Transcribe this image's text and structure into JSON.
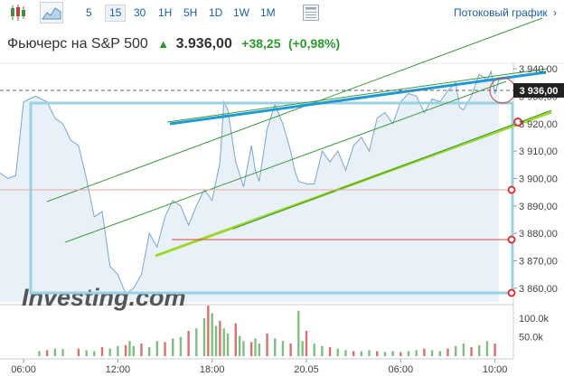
{
  "toolbar": {
    "timeframes": [
      "5",
      "15",
      "30",
      "1H",
      "5H",
      "1D",
      "1W",
      "1M"
    ],
    "active_timeframe": "15",
    "streaming_label": "Потоковый график"
  },
  "instrument": {
    "name": "Фьючерс на S&P 500",
    "price": "3.936,00",
    "change": "+38,25",
    "change_pct": "(+0,98%)"
  },
  "chart_data": {
    "type": "area",
    "price_axis": {
      "min": 3855,
      "max": 3942,
      "ticks": [
        {
          "value": 3940,
          "label": "3 940,00"
        },
        {
          "value": 3930,
          "label": "3 930,00"
        },
        {
          "value": 3920,
          "label": "3 920,00"
        },
        {
          "value": 3910,
          "label": "3 910,00"
        },
        {
          "value": 3900,
          "label": "3 900,00"
        },
        {
          "value": 3890,
          "label": "3 890,00"
        },
        {
          "value": 3880,
          "label": "3 880,00"
        },
        {
          "value": 3870,
          "label": "3 870,00"
        },
        {
          "value": 3860,
          "label": "3 860,00"
        }
      ],
      "current_value": 3936,
      "current_label": "3 936,00"
    },
    "x_axis": {
      "min": 0,
      "max": 130,
      "ticks": [
        {
          "value": 6,
          "label": "06:00"
        },
        {
          "value": 30,
          "label": "12:00"
        },
        {
          "value": 54,
          "label": "18:00"
        },
        {
          "value": 78,
          "label": "20.05"
        },
        {
          "value": 102,
          "label": "06:00"
        },
        {
          "value": 126,
          "label": "10:00"
        }
      ]
    },
    "price_series": [
      [
        0,
        3902
      ],
      [
        2,
        3900
      ],
      [
        4,
        3901
      ],
      [
        6,
        3928
      ],
      [
        9,
        3930
      ],
      [
        12,
        3928
      ],
      [
        14,
        3922
      ],
      [
        16,
        3920
      ],
      [
        18,
        3914
      ],
      [
        20,
        3912
      ],
      [
        22,
        3900
      ],
      [
        24,
        3886
      ],
      [
        26,
        3888
      ],
      [
        28,
        3868
      ],
      [
        30,
        3865
      ],
      [
        32,
        3858
      ],
      [
        34,
        3860
      ],
      [
        36,
        3865
      ],
      [
        38,
        3880
      ],
      [
        40,
        3875
      ],
      [
        42,
        3886
      ],
      [
        44,
        3892
      ],
      [
        46,
        3890
      ],
      [
        48,
        3883
      ],
      [
        50,
        3890
      ],
      [
        52,
        3896
      ],
      [
        54,
        3892
      ],
      [
        56,
        3906
      ],
      [
        57,
        3928
      ],
      [
        58,
        3925
      ],
      [
        60,
        3906
      ],
      [
        62,
        3897
      ],
      [
        64,
        3912
      ],
      [
        65,
        3903
      ],
      [
        66,
        3899
      ],
      [
        68,
        3918
      ],
      [
        70,
        3927
      ],
      [
        72,
        3920
      ],
      [
        74,
        3910
      ],
      [
        75,
        3903
      ],
      [
        76,
        3899
      ],
      [
        78,
        3898
      ],
      [
        80,
        3898
      ],
      [
        82,
        3910
      ],
      [
        84,
        3906
      ],
      [
        86,
        3910
      ],
      [
        88,
        3903
      ],
      [
        90,
        3912
      ],
      [
        92,
        3915
      ],
      [
        94,
        3910
      ],
      [
        96,
        3922
      ],
      [
        98,
        3924
      ],
      [
        100,
        3920
      ],
      [
        102,
        3928
      ],
      [
        104,
        3931
      ],
      [
        106,
        3930
      ],
      [
        108,
        3924
      ],
      [
        110,
        3929
      ],
      [
        112,
        3928
      ],
      [
        114,
        3932
      ],
      [
        116,
        3935
      ],
      [
        117,
        3926
      ],
      [
        118,
        3925
      ],
      [
        120,
        3930
      ],
      [
        122,
        3938
      ],
      [
        124,
        3936
      ],
      [
        125,
        3939
      ],
      [
        126,
        3931
      ],
      [
        127,
        3936
      ]
    ],
    "volume_series": [
      [
        10,
        0.1
      ],
      [
        12,
        0.12
      ],
      [
        14,
        0.15
      ],
      [
        16,
        0.14
      ],
      [
        20,
        0.15
      ],
      [
        22,
        0.12
      ],
      [
        24,
        0.1
      ],
      [
        26,
        0.18
      ],
      [
        28,
        0.15
      ],
      [
        30,
        0.2
      ],
      [
        32,
        0.22
      ],
      [
        33,
        0.3
      ],
      [
        34,
        0.2
      ],
      [
        36,
        0.25
      ],
      [
        38,
        0.18
      ],
      [
        40,
        0.3
      ],
      [
        42,
        0.28
      ],
      [
        44,
        0.35
      ],
      [
        46,
        0.38
      ],
      [
        48,
        0.5
      ],
      [
        50,
        0.55
      ],
      [
        52,
        0.75
      ],
      [
        53,
        1.0
      ],
      [
        54,
        0.85
      ],
      [
        55,
        0.6
      ],
      [
        56,
        0.7
      ],
      [
        57,
        0.55
      ],
      [
        58,
        0.45
      ],
      [
        60,
        0.65
      ],
      [
        61,
        0.4
      ],
      [
        62,
        0.3
      ],
      [
        64,
        0.28
      ],
      [
        65,
        0.35
      ],
      [
        66,
        0.25
      ],
      [
        68,
        0.45
      ],
      [
        70,
        0.35
      ],
      [
        72,
        0.3
      ],
      [
        74,
        0.25
      ],
      [
        76,
        0.9
      ],
      [
        77,
        0.3
      ],
      [
        78,
        0.5
      ],
      [
        80,
        0.25
      ],
      [
        82,
        0.2
      ],
      [
        84,
        0.18
      ],
      [
        86,
        0.15
      ],
      [
        88,
        0.12
      ],
      [
        90,
        0.1
      ],
      [
        92,
        0.1
      ],
      [
        94,
        0.12
      ],
      [
        96,
        0.1
      ],
      [
        98,
        0.08
      ],
      [
        100,
        0.1
      ],
      [
        102,
        0.08
      ],
      [
        104,
        0.1
      ],
      [
        106,
        0.12
      ],
      [
        108,
        0.15
      ],
      [
        110,
        0.12
      ],
      [
        112,
        0.1
      ],
      [
        114,
        0.15
      ],
      [
        116,
        0.2
      ],
      [
        118,
        0.25
      ],
      [
        120,
        0.18
      ],
      [
        122,
        0.22
      ],
      [
        124,
        0.3
      ],
      [
        126,
        0.25
      ]
    ],
    "volume_axis": {
      "ticks": [
        {
          "value": 0.75,
          "label": "100.0k"
        },
        {
          "value": 0.38,
          "label": "50.0k"
        }
      ]
    },
    "watermark": "Investing.com",
    "colors": {
      "line": "#7aa6cf",
      "area": "#e7eff7",
      "volume_up": "#7fbf7f",
      "volume_down": "#d9726f",
      "trend_blue": "#1f9ad6",
      "trend_yellow": "#9fd62a",
      "green_channel": "#3c9a3c",
      "level_red": "#d44",
      "box": "#9ad1e3"
    }
  }
}
